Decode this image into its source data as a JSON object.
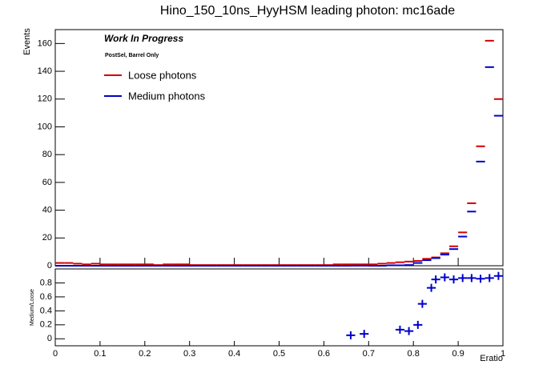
{
  "chart_data": [
    {
      "type": "histogram",
      "title": "Hino_150_10ns_HyyHSM leading photon: mc16ade",
      "ylabel": "Events",
      "annotations": [
        "Work In Progress",
        "PostSel, Barrel Only"
      ],
      "bins": [
        0,
        0.02,
        0.04,
        0.06,
        0.08,
        0.1,
        0.12,
        0.14,
        0.16,
        0.18,
        0.2,
        0.22,
        0.24,
        0.26,
        0.28,
        0.3,
        0.32,
        0.34,
        0.36,
        0.38,
        0.4,
        0.42,
        0.44,
        0.46,
        0.48,
        0.5,
        0.52,
        0.54,
        0.56,
        0.58,
        0.6,
        0.62,
        0.64,
        0.66,
        0.68,
        0.7,
        0.72,
        0.74,
        0.76,
        0.78,
        0.8,
        0.82,
        0.84,
        0.86,
        0.88,
        0.9,
        0.92,
        0.94,
        0.96,
        0.98,
        1
      ],
      "series": [
        {
          "name": "Loose photons",
          "color": "#d40000",
          "values": [
            2,
            2,
            1.5,
            1,
            1.5,
            1,
            1,
            1,
            1,
            1,
            1,
            0.5,
            1,
            1,
            1,
            0.5,
            0.5,
            0.5,
            0.5,
            0.5,
            0.5,
            0.5,
            0.5,
            0.5,
            0.5,
            0.5,
            0.5,
            0.5,
            0.5,
            0.5,
            0.5,
            1,
            1,
            1,
            1,
            1,
            1.5,
            2,
            2.5,
            3,
            3.5,
            5,
            6,
            9,
            14,
            24,
            45,
            86,
            162,
            120
          ]
        },
        {
          "name": "Medium photons",
          "color": "#0000cc",
          "values": [
            0,
            0,
            0,
            0,
            0,
            0,
            0,
            0,
            0,
            0,
            0,
            0,
            0,
            0,
            0,
            0,
            0,
            0,
            0,
            0,
            0,
            0,
            0,
            0,
            0,
            0,
            0,
            0,
            0,
            0,
            0,
            0,
            0,
            0.05,
            0.07,
            0,
            0,
            0.3,
            0.3,
            0.5,
            2,
            4,
            5.5,
            8,
            12,
            21,
            39,
            75,
            143,
            108
          ]
        }
      ],
      "xlim": [
        0,
        1
      ],
      "ylim": [
        0,
        170
      ],
      "yticks": [
        0,
        20,
        40,
        60,
        80,
        100,
        120,
        140,
        160
      ]
    },
    {
      "type": "scatter",
      "xlabel": "Eratio",
      "ylabel": "Medium/Loose",
      "color": "#0000cc",
      "x": [
        0.66,
        0.69,
        0.77,
        0.79,
        0.81,
        0.82,
        0.84,
        0.85,
        0.87,
        0.89,
        0.91,
        0.93,
        0.95,
        0.97,
        0.99
      ],
      "values": [
        0.05,
        0.07,
        0.13,
        0.11,
        0.2,
        0.5,
        0.73,
        0.85,
        0.88,
        0.85,
        0.87,
        0.87,
        0.86,
        0.87,
        0.9
      ],
      "xlim": [
        0,
        1
      ],
      "xticks": [
        0,
        0.1,
        0.2,
        0.3,
        0.4,
        0.5,
        0.6,
        0.7,
        0.8,
        0.9,
        1
      ],
      "ylim": [
        -0.1,
        1
      ],
      "yticks": [
        0,
        0.2,
        0.4,
        0.6,
        0.8
      ]
    }
  ]
}
